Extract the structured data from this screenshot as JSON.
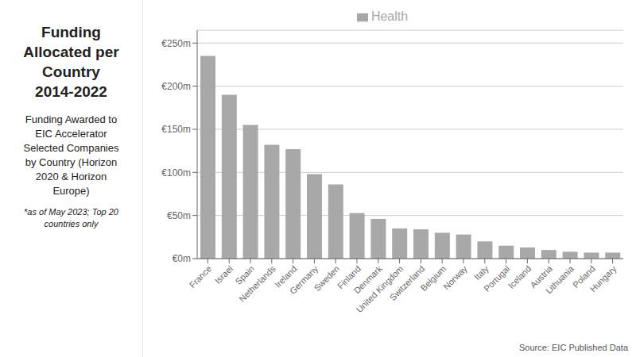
{
  "chart_data": {
    "type": "bar",
    "title": [
      "Funding",
      "Allocated per",
      "Country",
      "2014-2022"
    ],
    "subtitle": [
      "Funding Awarded to",
      "EIC Accelerator",
      "Selected Companies",
      "by Country (Horizon",
      "2020 & Horizon",
      "Europe)"
    ],
    "annotations": [
      "*as of May 2023; Top 20",
      "countries only",
      "Source: EIC Published Data"
    ],
    "categories": [
      "France",
      "Israel",
      "Spain",
      "Netherlands",
      "Ireland",
      "Germany",
      "Sweden",
      "Finland",
      "Denmark",
      "United Kingdom",
      "Switzerland",
      "Belgium",
      "Norway",
      "Italy",
      "Portugal",
      "Iceland",
      "Austria",
      "Lithuania",
      "Poland",
      "Hungary"
    ],
    "series": [
      {
        "name": "Health",
        "color": "#a8a8a8",
        "values": [
          235,
          190,
          155,
          132,
          127,
          98,
          86,
          53,
          46,
          35,
          34,
          30,
          28,
          20,
          15,
          13,
          10,
          8,
          7,
          7
        ]
      }
    ],
    "ylim": [
      0,
      265
    ],
    "yticks": [
      {
        "value": 0,
        "label": "€0m"
      },
      {
        "value": 50,
        "label": "€50m"
      },
      {
        "value": 100,
        "label": "€100m"
      },
      {
        "value": 150,
        "label": "€150m"
      },
      {
        "value": 200,
        "label": "€200m"
      },
      {
        "value": 250,
        "label": "€250m"
      }
    ],
    "grid": true,
    "legend": "top"
  }
}
